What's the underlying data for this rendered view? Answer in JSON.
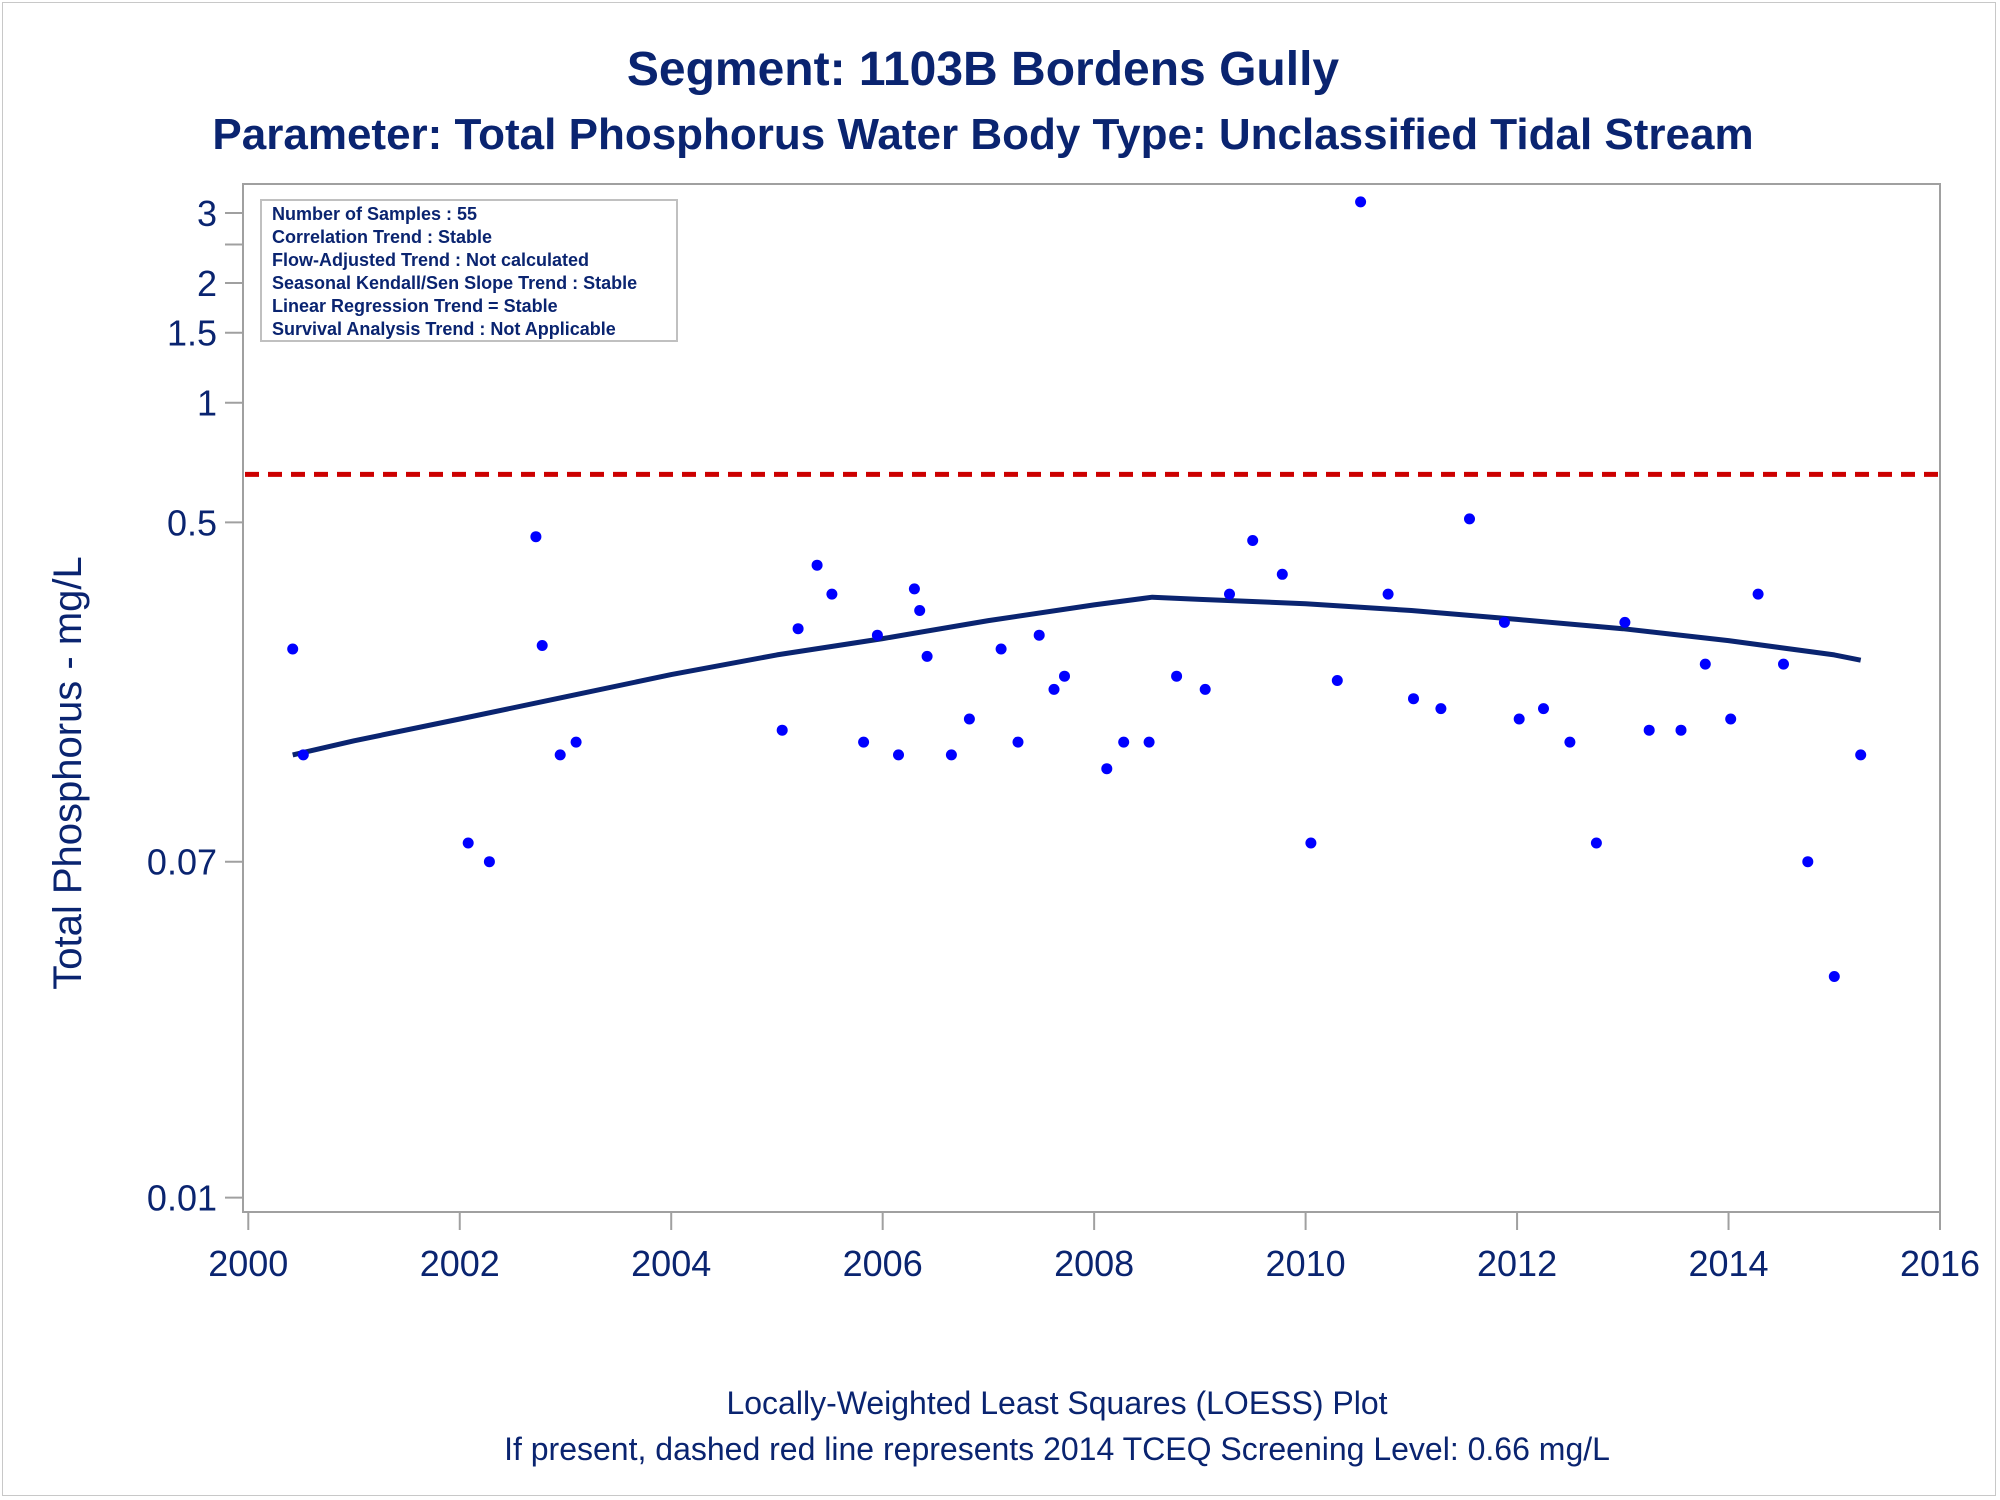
{
  "chart_data": {
    "type": "scatter",
    "title": "Segment: 1103B  Bordens Gully",
    "subtitle": "Parameter: Total Phosphorus   Water Body Type: Unclassified Tidal Stream",
    "ylabel": "Total Phosphorus - mg/L",
    "xlabel": "",
    "footnotes": [
      "Locally-Weighted Least Squares (LOESS) Plot",
      "If present, dashed red line represents 2014 TCEQ Screening Level: 0.66 mg/L"
    ],
    "y_scale": "log",
    "xlim": [
      1999.95,
      2016.0
    ],
    "ylim": [
      0.0092,
      3.55
    ],
    "x_ticks": [
      2000,
      2002,
      2004,
      2006,
      2008,
      2010,
      2012,
      2014,
      2016
    ],
    "x_tick_labels": [
      "2000",
      "2002",
      "2004",
      "2006",
      "2008",
      "2010",
      "2012",
      "2014",
      "2016"
    ],
    "y_ticks": [
      0.01,
      0.07,
      0.5,
      1,
      1.5,
      2,
      2.5,
      3
    ],
    "y_tick_labels": [
      "0.01",
      "0.07",
      "0.5",
      "1",
      "1.5",
      "2",
      "",
      "3"
    ],
    "grid": false,
    "stats_box": [
      "Number of Samples : 55",
      "Correlation Trend : Stable",
      "Flow-Adjusted Trend : Not calculated",
      "Seasonal Kendall/Sen Slope Trend : Stable",
      "Linear Regression Trend = Stable",
      "Survival Analysis Trend : Not Applicable"
    ],
    "stats_box_position": "top-left",
    "screening_level": {
      "value": 0.66,
      "color": "#cc0000",
      "style": "dashed"
    },
    "points_color": "#0000ff",
    "loess_color": "#0a2470",
    "points": [
      [
        2000.42,
        0.24
      ],
      [
        2000.52,
        0.13
      ],
      [
        2002.08,
        0.078
      ],
      [
        2002.28,
        0.07
      ],
      [
        2002.72,
        0.46
      ],
      [
        2002.78,
        0.245
      ],
      [
        2002.95,
        0.13
      ],
      [
        2003.1,
        0.14
      ],
      [
        2005.05,
        0.15
      ],
      [
        2005.2,
        0.27
      ],
      [
        2005.38,
        0.39
      ],
      [
        2005.52,
        0.33
      ],
      [
        2005.82,
        0.14
      ],
      [
        2005.95,
        0.26
      ],
      [
        2006.15,
        0.13
      ],
      [
        2006.3,
        0.34
      ],
      [
        2006.35,
        0.3
      ],
      [
        2006.42,
        0.23
      ],
      [
        2006.65,
        0.13
      ],
      [
        2006.82,
        0.16
      ],
      [
        2007.12,
        0.24
      ],
      [
        2007.28,
        0.14
      ],
      [
        2007.48,
        0.26
      ],
      [
        2007.62,
        0.19
      ],
      [
        2007.72,
        0.205
      ],
      [
        2008.12,
        0.12
      ],
      [
        2008.28,
        0.14
      ],
      [
        2008.52,
        0.14
      ],
      [
        2008.78,
        0.205
      ],
      [
        2009.05,
        0.19
      ],
      [
        2009.28,
        0.33
      ],
      [
        2009.5,
        0.45
      ],
      [
        2009.78,
        0.37
      ],
      [
        2010.05,
        0.078
      ],
      [
        2010.3,
        0.2
      ],
      [
        2010.52,
        3.2
      ],
      [
        2010.78,
        0.33
      ],
      [
        2011.02,
        0.18
      ],
      [
        2011.28,
        0.17
      ],
      [
        2011.55,
        0.51
      ],
      [
        2011.88,
        0.28
      ],
      [
        2012.02,
        0.16
      ],
      [
        2012.25,
        0.17
      ],
      [
        2012.5,
        0.14
      ],
      [
        2012.75,
        0.078
      ],
      [
        2013.02,
        0.28
      ],
      [
        2013.25,
        0.15
      ],
      [
        2013.55,
        0.15
      ],
      [
        2013.78,
        0.22
      ],
      [
        2014.02,
        0.16
      ],
      [
        2014.28,
        0.33
      ],
      [
        2014.52,
        0.22
      ],
      [
        2014.75,
        0.07
      ],
      [
        2015.0,
        0.036
      ],
      [
        2015.25,
        0.13
      ]
    ],
    "loess_curve": [
      [
        2000.42,
        0.13
      ],
      [
        2001.0,
        0.141
      ],
      [
        2002.0,
        0.16
      ],
      [
        2003.0,
        0.182
      ],
      [
        2004.0,
        0.207
      ],
      [
        2005.0,
        0.232
      ],
      [
        2006.0,
        0.255
      ],
      [
        2007.0,
        0.283
      ],
      [
        2008.0,
        0.31
      ],
      [
        2008.55,
        0.324
      ],
      [
        2009.0,
        0.32
      ],
      [
        2010.0,
        0.312
      ],
      [
        2011.0,
        0.3
      ],
      [
        2012.0,
        0.285
      ],
      [
        2013.0,
        0.27
      ],
      [
        2014.0,
        0.252
      ],
      [
        2015.0,
        0.232
      ],
      [
        2015.25,
        0.225
      ]
    ]
  }
}
